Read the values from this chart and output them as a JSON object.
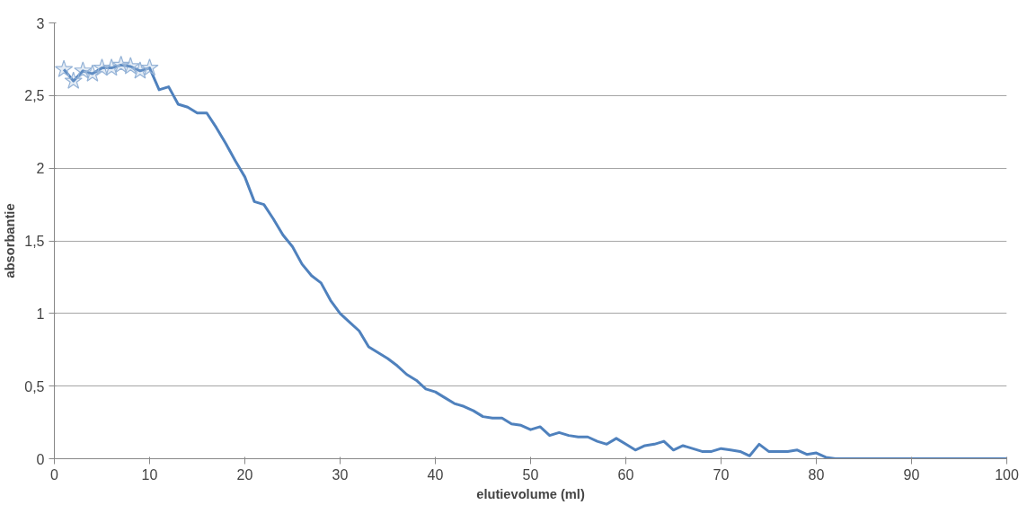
{
  "chart_data": {
    "type": "line",
    "xlabel": "elutievolume (ml)",
    "ylabel": "absorbantie",
    "xlim": [
      0,
      100
    ],
    "xticks": [
      0,
      10,
      20,
      30,
      40,
      50,
      60,
      70,
      80,
      90,
      100
    ],
    "ylim": [
      0,
      3
    ],
    "yticks": [
      0,
      {
        "value": 0.5,
        "label": "0,5"
      },
      1,
      {
        "value": 1.5,
        "label": "1,5"
      },
      2,
      {
        "value": 2.5,
        "label": "2,5"
      },
      3
    ],
    "grid": "y",
    "series": [
      {
        "color": "#4f81bd",
        "marker": "none",
        "x": [
          1,
          2,
          3,
          4,
          5,
          6,
          7,
          8,
          9,
          10,
          11,
          12,
          13,
          14,
          15,
          16,
          17,
          18,
          19,
          20,
          21,
          22,
          23,
          24,
          25,
          26,
          27,
          28,
          29,
          30,
          31,
          32,
          33,
          34,
          35,
          36,
          37,
          38,
          39,
          40,
          41,
          42,
          43,
          44,
          45,
          46,
          47,
          48,
          49,
          50,
          51,
          52,
          53,
          54,
          55,
          56,
          57,
          58,
          59,
          60,
          61,
          62,
          63,
          64,
          65,
          66,
          67,
          68,
          69,
          70,
          71,
          72,
          73,
          74,
          75,
          76,
          77,
          78,
          79,
          80,
          81,
          82,
          83,
          84,
          85,
          86,
          87,
          88,
          89,
          90,
          91,
          92,
          93,
          94,
          95,
          96,
          97,
          98,
          99,
          100
        ],
        "values": [
          2.68,
          2.6,
          2.67,
          2.65,
          2.69,
          2.69,
          2.71,
          2.7,
          2.67,
          2.69,
          2.54,
          2.56,
          2.44,
          2.42,
          2.38,
          2.38,
          2.28,
          2.17,
          2.05,
          1.94,
          1.77,
          1.75,
          1.65,
          1.54,
          1.46,
          1.34,
          1.26,
          1.21,
          1.09,
          1.0,
          0.94,
          0.88,
          0.77,
          0.73,
          0.69,
          0.64,
          0.58,
          0.54,
          0.48,
          0.46,
          0.42,
          0.38,
          0.36,
          0.33,
          0.29,
          0.28,
          0.28,
          0.24,
          0.23,
          0.2,
          0.22,
          0.16,
          0.18,
          0.16,
          0.15,
          0.15,
          0.12,
          0.1,
          0.14,
          0.1,
          0.06,
          0.09,
          0.1,
          0.12,
          0.06,
          0.09,
          0.07,
          0.05,
          0.05,
          0.07,
          0.06,
          0.05,
          0.02,
          0.1,
          0.05,
          0.05,
          0.05,
          0.06,
          0.03,
          0.04,
          0.01,
          0,
          0,
          0,
          0,
          0,
          0,
          0,
          0,
          0,
          0,
          0,
          0,
          0,
          0,
          0,
          0,
          0,
          0,
          0
        ]
      },
      {
        "type": "scatter",
        "color": "#95b3d7",
        "marker": "star",
        "x": [
          1,
          2,
          3,
          4,
          5,
          6,
          7,
          8,
          9,
          10
        ],
        "values": [
          2.68,
          2.6,
          2.67,
          2.65,
          2.69,
          2.69,
          2.71,
          2.7,
          2.67,
          2.69
        ]
      }
    ]
  }
}
